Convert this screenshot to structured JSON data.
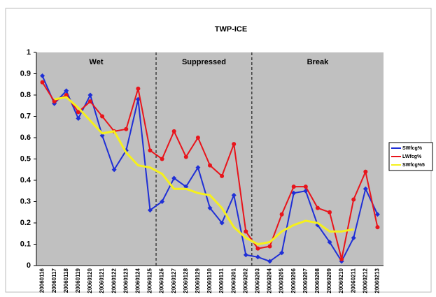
{
  "chart_data": {
    "type": "line",
    "title": "TWP-ICE",
    "categories": [
      "20060116",
      "20060117",
      "20060118",
      "20060119",
      "20060120",
      "20060121",
      "20060122",
      "20060123",
      "20060124",
      "20060125",
      "20060126",
      "20060127",
      "20060128",
      "20060129",
      "20060130",
      "20060131",
      "20060201",
      "20060202",
      "20060203",
      "20060204",
      "20060205",
      "20060206",
      "20060207",
      "20060208",
      "20060209",
      "20060210",
      "20060211",
      "20060212",
      "20060213"
    ],
    "annotations": [
      "Wet",
      "Suppressed",
      "Break"
    ],
    "series": [
      {
        "name": "SWfcg%",
        "color": "#1f2fd6",
        "marker": "diamond",
        "values": [
          0.89,
          0.76,
          0.82,
          0.69,
          0.8,
          0.61,
          0.45,
          0.54,
          0.78,
          0.26,
          0.3,
          0.41,
          0.37,
          0.46,
          0.27,
          0.2,
          0.33,
          0.05,
          0.04,
          0.02,
          0.06,
          0.34,
          0.35,
          0.19,
          0.11,
          0.02,
          0.13,
          0.36,
          0.24
        ]
      },
      {
        "name": "LWfcg%",
        "color": "#e8141b",
        "marker": "circle",
        "values": [
          0.86,
          0.77,
          0.8,
          0.72,
          0.77,
          0.7,
          0.63,
          0.64,
          0.83,
          0.54,
          0.5,
          0.63,
          0.51,
          0.6,
          0.47,
          0.42,
          0.57,
          0.16,
          0.08,
          0.09,
          0.24,
          0.37,
          0.37,
          0.27,
          0.25,
          0.03,
          0.31,
          0.44,
          0.18
        ]
      },
      {
        "name": "SWfcg%5",
        "color": "#f5f01c",
        "marker": "none",
        "values": [
          null,
          0.78,
          0.79,
          0.74,
          0.68,
          0.62,
          0.63,
          0.53,
          0.47,
          0.46,
          0.43,
          0.36,
          0.36,
          0.34,
          0.33,
          0.27,
          0.18,
          0.13,
          0.1,
          0.11,
          0.16,
          0.19,
          0.21,
          0.2,
          0.16,
          0.16,
          0.17,
          null,
          null
        ]
      }
    ],
    "ylim": [
      0,
      1
    ],
    "yticks": [
      0,
      0.1,
      0.2,
      0.3,
      0.4,
      0.5,
      0.6,
      0.7,
      0.8,
      0.9,
      1
    ],
    "grid": false,
    "legend": "right"
  }
}
